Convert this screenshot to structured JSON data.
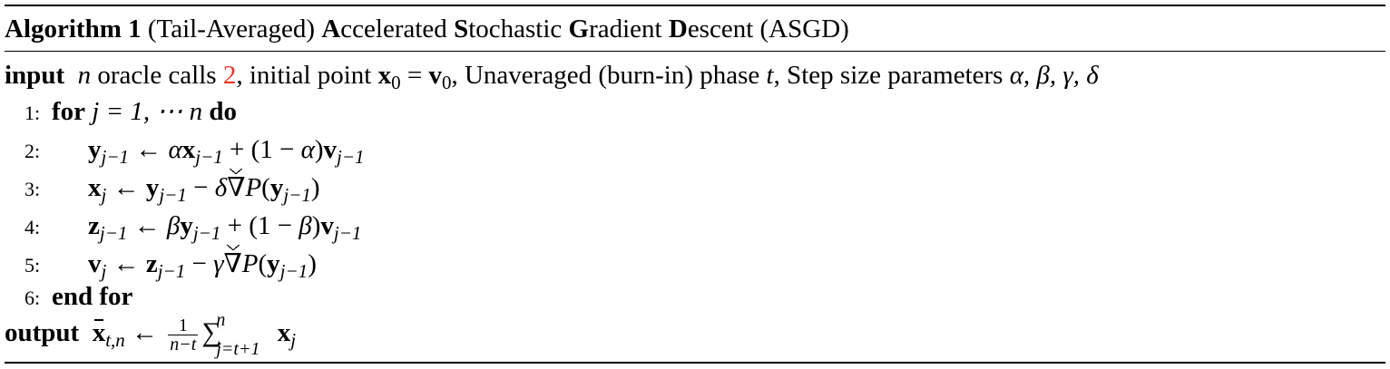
{
  "caption": {
    "label": "Algorithm 1",
    "title": "(Tail-Averaged) Accelerated Stochastic Gradient Descent (ASGD)"
  },
  "input": {
    "keyword": "input",
    "var_n": "n",
    "text1": " oracle calls ",
    "ref": "2",
    "text2": ", initial point ",
    "x0": "x",
    "x0_sub": "0",
    "eq": " = ",
    "v0": "v",
    "v0_sub": "0",
    "text3": ", Unaveraged (burn-in) phase ",
    "var_t": "t",
    "text4": ", Step size parameters ",
    "params": "α, β, γ, δ"
  },
  "lines": [
    {
      "num": "1:",
      "kw_for": "for",
      "expr": "j = 1, ⋯ n",
      "kw_do": "do"
    },
    {
      "num": "2:"
    },
    {
      "num": "3:"
    },
    {
      "num": "4:"
    },
    {
      "num": "5:"
    },
    {
      "num": "6:",
      "kw_end": "end for"
    }
  ],
  "output": {
    "keyword": "output",
    "xbar": "x",
    "xbar_sub": "t,n",
    "arrow": "←",
    "frac_num": "1",
    "frac_den": "n−t",
    "sum_sup": "n",
    "sum_sub": "j=t+1",
    "xj": "x",
    "xj_sub": "j"
  },
  "colors": {
    "ref_link": "#e8332a"
  }
}
